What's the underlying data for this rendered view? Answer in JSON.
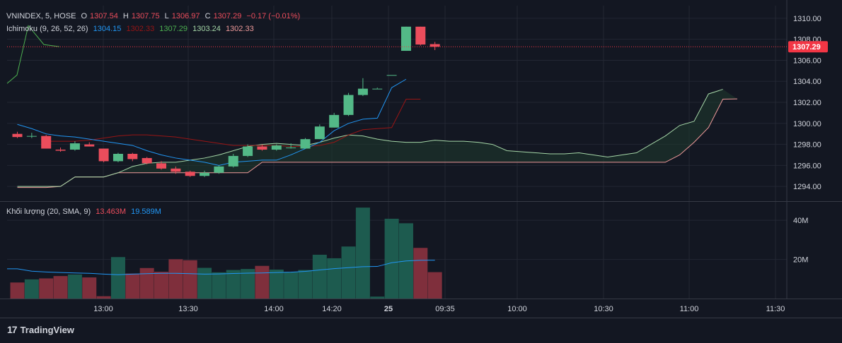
{
  "legend": {
    "symbol": "VNINDEX, 5, HOSE",
    "o_label": "O",
    "o_value": "1307.54",
    "h_label": "H",
    "h_value": "1307.75",
    "l_label": "L",
    "l_value": "1306.97",
    "c_label": "C",
    "c_value": "1307.29",
    "change": "−0.17 (−0.01%)",
    "ichimoku_label": "Ichimoku (9, 26, 52, 26)",
    "ichimoku_values": [
      "1304.15",
      "1302.33",
      "1307.29",
      "1303.24",
      "1302.33"
    ],
    "volume_label": "Khối lượng (20, SMA, 9)",
    "volume_values": [
      "13.463M",
      "19.589M"
    ]
  },
  "colors": {
    "up": "#53b987",
    "down": "#eb4d5c",
    "tenkan": "#2196f3",
    "kijun": "#991515",
    "chikou": "#4caf50",
    "span_a": "#a5d6a7",
    "span_b": "#ef9a9a",
    "cloud": "#1f3a2e",
    "vol_up": "#1d5b4f",
    "vol_down": "#7f2f3c",
    "vol_sma": "#2196f3",
    "last_price_bg": "#f23645",
    "text": "#d1d4dc"
  },
  "brand": {
    "logo": "17",
    "name": "TradingView"
  },
  "chart_data": {
    "type": "candlestick",
    "price_axis": {
      "ticks": [
        "1310.00",
        "1308.00",
        "1306.00",
        "1304.00",
        "1302.00",
        "1300.00",
        "1298.00",
        "1296.00",
        "1294.00"
      ],
      "range": [
        1292.6,
        1311.2
      ]
    },
    "last_price": {
      "value": 1307.29,
      "label": "1307.29"
    },
    "time_axis": {
      "labels": [
        "13:00",
        "13:30",
        "14:00",
        "14:20",
        "25",
        "09:35",
        "10:00",
        "10:30",
        "11:00",
        "11:30"
      ]
    },
    "candles": [
      {
        "o": 1299.0,
        "h": 1299.2,
        "l": 1298.6,
        "c": 1298.7
      },
      {
        "o": 1298.8,
        "h": 1299.1,
        "l": 1298.6,
        "c": 1298.8
      },
      {
        "o": 1298.8,
        "h": 1298.9,
        "l": 1297.6,
        "c": 1297.6
      },
      {
        "o": 1297.5,
        "h": 1297.7,
        "l": 1297.3,
        "c": 1297.4
      },
      {
        "o": 1297.5,
        "h": 1298.3,
        "l": 1297.4,
        "c": 1298.1
      },
      {
        "o": 1298.0,
        "h": 1298.2,
        "l": 1297.8,
        "c": 1297.8
      },
      {
        "o": 1297.6,
        "h": 1297.6,
        "l": 1296.3,
        "c": 1296.4
      },
      {
        "o": 1296.4,
        "h": 1297.2,
        "l": 1296.3,
        "c": 1297.1
      },
      {
        "o": 1297.1,
        "h": 1297.2,
        "l": 1296.4,
        "c": 1296.6
      },
      {
        "o": 1296.7,
        "h": 1296.8,
        "l": 1296.1,
        "c": 1296.2
      },
      {
        "o": 1296.2,
        "h": 1296.4,
        "l": 1295.6,
        "c": 1295.7
      },
      {
        "o": 1295.7,
        "h": 1295.9,
        "l": 1295.2,
        "c": 1295.4
      },
      {
        "o": 1295.4,
        "h": 1295.5,
        "l": 1294.9,
        "c": 1295.0
      },
      {
        "o": 1295.0,
        "h": 1295.5,
        "l": 1294.9,
        "c": 1295.3
      },
      {
        "o": 1295.3,
        "h": 1296.0,
        "l": 1295.2,
        "c": 1295.9
      },
      {
        "o": 1295.9,
        "h": 1297.1,
        "l": 1295.8,
        "c": 1296.9
      },
      {
        "o": 1296.9,
        "h": 1298.0,
        "l": 1296.8,
        "c": 1297.8
      },
      {
        "o": 1297.8,
        "h": 1298.0,
        "l": 1297.4,
        "c": 1297.5
      },
      {
        "o": 1297.5,
        "h": 1298.0,
        "l": 1297.4,
        "c": 1297.9
      },
      {
        "o": 1297.7,
        "h": 1298.1,
        "l": 1297.6,
        "c": 1297.7
      },
      {
        "o": 1297.6,
        "h": 1298.6,
        "l": 1297.6,
        "c": 1298.5
      },
      {
        "o": 1298.5,
        "h": 1299.9,
        "l": 1298.5,
        "c": 1299.7
      },
      {
        "o": 1299.6,
        "h": 1301.0,
        "l": 1299.6,
        "c": 1300.8
      },
      {
        "o": 1300.8,
        "h": 1302.9,
        "l": 1300.7,
        "c": 1302.7
      },
      {
        "o": 1302.7,
        "h": 1304.3,
        "l": 1302.6,
        "c": 1303.3
      },
      {
        "o": 1303.3,
        "h": 1303.4,
        "l": 1303.3,
        "c": 1303.3
      },
      {
        "o": 1304.6,
        "h": 1304.6,
        "l": 1304.6,
        "c": 1304.6
      },
      {
        "o": 1306.9,
        "h": 1309.2,
        "l": 1306.9,
        "c": 1309.2
      },
      {
        "o": 1309.2,
        "h": 1309.2,
        "l": 1307.4,
        "c": 1307.5
      },
      {
        "o": 1307.54,
        "h": 1307.75,
        "l": 1306.97,
        "c": 1307.29
      }
    ],
    "ichimoku": {
      "tenkan": [
        1299.9,
        1299.5,
        1299.0,
        1298.8,
        1298.7,
        1298.5,
        1298.3,
        1298.1,
        1297.9,
        1297.4,
        1297.0,
        1296.7,
        1296.5,
        1296.3,
        1296.0,
        1296.3,
        1296.4,
        1296.5,
        1296.5,
        1297.0,
        1297.6,
        1298.2,
        1299.3,
        1300.0,
        1300.4,
        1300.5,
        1303.4,
        1304.2
      ],
      "kijun": [
        1298.3,
        1298.3,
        1298.3,
        1298.4,
        1298.6,
        1298.8,
        1298.9,
        1298.9,
        1298.8,
        1298.7,
        1298.5,
        1298.3,
        1298.1,
        1297.9,
        1297.9,
        1297.9,
        1297.9,
        1297.8,
        1297.8,
        1297.9,
        1298.2,
        1298.9,
        1299.4,
        1299.5,
        1299.6,
        1302.3,
        1302.3
      ],
      "chikou": [
        1303.8,
        1304.6,
        1309.3,
        1307.5,
        1307.3
      ],
      "span_a": [
        1294.0,
        1294.0,
        1294.0,
        1294.0,
        1294.9,
        1294.9,
        1294.9,
        1295.3,
        1295.9,
        1296.2,
        1296.3,
        1296.3,
        1296.5,
        1296.7,
        1297.0,
        1297.4,
        1297.8,
        1298.0,
        1298.1,
        1298.0,
        1297.9,
        1298.2,
        1298.6,
        1298.9,
        1298.8,
        1298.5,
        1298.3,
        1298.2,
        1298.2,
        1298.4,
        1298.3,
        1298.3,
        1298.2,
        1298.0,
        1297.4,
        1297.3,
        1297.2,
        1297.1,
        1297.1,
        1297.2,
        1297.0,
        1296.8,
        1297.0,
        1297.2,
        1298.0,
        1298.8,
        1299.8,
        1300.2,
        1302.8,
        1303.24
      ],
      "span_b": [
        1293.9,
        1293.9,
        1293.9,
        1294.0,
        1294.9,
        1294.9,
        1294.9,
        1295.3,
        1295.3,
        1295.3,
        1295.3,
        1295.3,
        1295.3,
        1295.3,
        1295.3,
        1295.3,
        1295.3,
        1296.3,
        1296.3,
        1296.3,
        1296.3,
        1296.3,
        1296.3,
        1296.3,
        1296.3,
        1296.3,
        1296.3,
        1296.3,
        1296.3,
        1296.3,
        1296.3,
        1296.3,
        1296.3,
        1296.3,
        1296.3,
        1296.3,
        1296.3,
        1296.3,
        1296.3,
        1296.3,
        1296.3,
        1296.3,
        1296.3,
        1296.3,
        1296.3,
        1296.3,
        1297.0,
        1298.2,
        1299.6,
        1302.3,
        1302.33
      ]
    },
    "volume": {
      "ticks": [
        "40M",
        "20M"
      ],
      "max": 48,
      "values": [
        8.2,
        9.8,
        10.3,
        11.5,
        12.3,
        10.8,
        1.2,
        21.2,
        12.8,
        15.6,
        13.7,
        20.1,
        19.6,
        15.7,
        13.4,
        14.6,
        15.1,
        16.7,
        14.8,
        13.6,
        14.6,
        22.4,
        20.6,
        26.6,
        46.5,
        1.0,
        40.8,
        38.5,
        25.9,
        13.5
      ],
      "sma": [
        15.2,
        14.0,
        13.6,
        13.3,
        13.1,
        12.9,
        12.5,
        12.2,
        12.5,
        12.7,
        12.9,
        12.9,
        12.7,
        12.5,
        12.6,
        12.8,
        13.0,
        13.1,
        13.3,
        13.5,
        13.9,
        14.6,
        15.3,
        15.8,
        16.3,
        16.4,
        18.3,
        19.2,
        19.6,
        19.589
      ]
    }
  }
}
